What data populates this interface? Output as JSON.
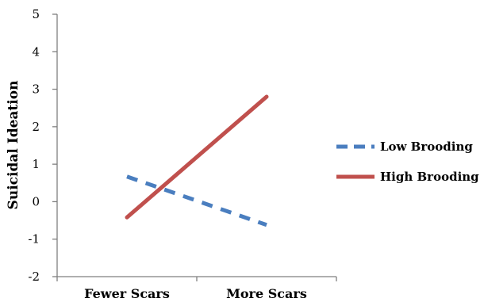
{
  "chart_data": {
    "type": "line",
    "title": "",
    "xlabel": "",
    "ylabel": "Suicidal Ideation",
    "categories": [
      "Fewer Scars",
      "More Scars"
    ],
    "ylim": [
      -2,
      5
    ],
    "yticks": [
      -2,
      -1,
      0,
      1,
      2,
      3,
      4,
      5
    ],
    "grid": false,
    "legend_position": "right",
    "series": [
      {
        "name": "Low Brooding",
        "values": [
          0.67,
          -0.62
        ],
        "color": "#4a7ebf",
        "style": "dashed"
      },
      {
        "name": "High Brooding",
        "values": [
          -0.42,
          2.8
        ],
        "color": "#c0504d",
        "style": "solid"
      }
    ]
  }
}
